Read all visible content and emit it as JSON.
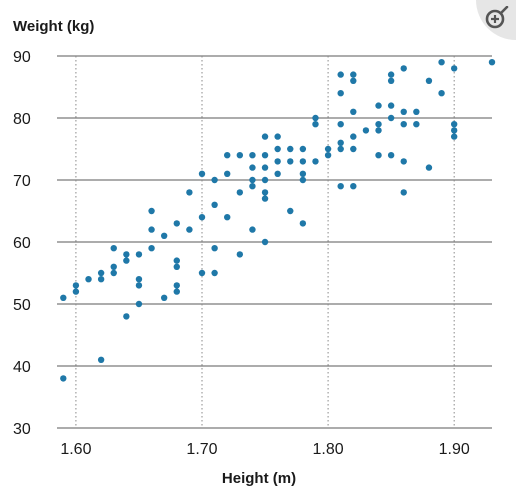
{
  "colors": {
    "dot": "#1f78a8",
    "grid_horizontal": "#7a7a7a",
    "grid_vertical": "#8a8a8a",
    "text": "#1a1a1a",
    "zoom_bg": "#e6e6e6",
    "zoom_icon": "#555555"
  },
  "zoom_icon": "zoom-in-icon",
  "chart_data": {
    "type": "scatter",
    "title": "",
    "ylabel": "Weight (kg)",
    "xlabel": "Height (m)",
    "xlim": [
      1.585,
      1.93
    ],
    "ylim": [
      30,
      90
    ],
    "xticks": [
      1.6,
      1.7,
      1.8,
      1.9
    ],
    "xtick_labels": [
      "1.60",
      "1.70",
      "1.80",
      "1.90"
    ],
    "yticks": [
      30,
      40,
      50,
      60,
      70,
      80,
      90
    ],
    "ytick_labels": [
      "30",
      "40",
      "50",
      "60",
      "70",
      "80",
      "90"
    ],
    "grid": "horizontal solid, vertical dotted",
    "points": [
      [
        1.59,
        38
      ],
      [
        1.59,
        51
      ],
      [
        1.6,
        52
      ],
      [
        1.6,
        53
      ],
      [
        1.61,
        54
      ],
      [
        1.62,
        41
      ],
      [
        1.62,
        54
      ],
      [
        1.62,
        55
      ],
      [
        1.63,
        55
      ],
      [
        1.63,
        56
      ],
      [
        1.63,
        59
      ],
      [
        1.64,
        48
      ],
      [
        1.64,
        57
      ],
      [
        1.64,
        58
      ],
      [
        1.65,
        50
      ],
      [
        1.65,
        53
      ],
      [
        1.65,
        54
      ],
      [
        1.65,
        58
      ],
      [
        1.66,
        59
      ],
      [
        1.66,
        62
      ],
      [
        1.66,
        65
      ],
      [
        1.67,
        51
      ],
      [
        1.67,
        61
      ],
      [
        1.68,
        52
      ],
      [
        1.68,
        53
      ],
      [
        1.68,
        56
      ],
      [
        1.68,
        57
      ],
      [
        1.68,
        63
      ],
      [
        1.69,
        62
      ],
      [
        1.69,
        68
      ],
      [
        1.7,
        55
      ],
      [
        1.7,
        64
      ],
      [
        1.7,
        71
      ],
      [
        1.71,
        55
      ],
      [
        1.71,
        59
      ],
      [
        1.71,
        66
      ],
      [
        1.71,
        70
      ],
      [
        1.72,
        64
      ],
      [
        1.72,
        71
      ],
      [
        1.72,
        74
      ],
      [
        1.73,
        58
      ],
      [
        1.73,
        68
      ],
      [
        1.73,
        74
      ],
      [
        1.74,
        62
      ],
      [
        1.74,
        69
      ],
      [
        1.74,
        70
      ],
      [
        1.74,
        72
      ],
      [
        1.74,
        74
      ],
      [
        1.75,
        60
      ],
      [
        1.75,
        67
      ],
      [
        1.75,
        68
      ],
      [
        1.75,
        70
      ],
      [
        1.75,
        72
      ],
      [
        1.75,
        74
      ],
      [
        1.75,
        77
      ],
      [
        1.76,
        71
      ],
      [
        1.76,
        73
      ],
      [
        1.76,
        75
      ],
      [
        1.76,
        77
      ],
      [
        1.77,
        65
      ],
      [
        1.77,
        73
      ],
      [
        1.77,
        75
      ],
      [
        1.78,
        63
      ],
      [
        1.78,
        70
      ],
      [
        1.78,
        71
      ],
      [
        1.78,
        73
      ],
      [
        1.78,
        75
      ],
      [
        1.79,
        73
      ],
      [
        1.79,
        79
      ],
      [
        1.79,
        80
      ],
      [
        1.8,
        74
      ],
      [
        1.8,
        75
      ],
      [
        1.81,
        69
      ],
      [
        1.81,
        75
      ],
      [
        1.81,
        76
      ],
      [
        1.81,
        79
      ],
      [
        1.81,
        84
      ],
      [
        1.81,
        87
      ],
      [
        1.82,
        69
      ],
      [
        1.82,
        75
      ],
      [
        1.82,
        77
      ],
      [
        1.82,
        81
      ],
      [
        1.82,
        86
      ],
      [
        1.82,
        87
      ],
      [
        1.83,
        78
      ],
      [
        1.84,
        74
      ],
      [
        1.84,
        78
      ],
      [
        1.84,
        79
      ],
      [
        1.84,
        82
      ],
      [
        1.85,
        74
      ],
      [
        1.85,
        80
      ],
      [
        1.85,
        82
      ],
      [
        1.85,
        86
      ],
      [
        1.85,
        87
      ],
      [
        1.86,
        68
      ],
      [
        1.86,
        73
      ],
      [
        1.86,
        79
      ],
      [
        1.86,
        81
      ],
      [
        1.86,
        88
      ],
      [
        1.87,
        79
      ],
      [
        1.87,
        81
      ],
      [
        1.88,
        72
      ],
      [
        1.88,
        86
      ],
      [
        1.89,
        84
      ],
      [
        1.89,
        89
      ],
      [
        1.9,
        77
      ],
      [
        1.9,
        78
      ],
      [
        1.9,
        79
      ],
      [
        1.9,
        88
      ],
      [
        1.93,
        89
      ]
    ]
  }
}
